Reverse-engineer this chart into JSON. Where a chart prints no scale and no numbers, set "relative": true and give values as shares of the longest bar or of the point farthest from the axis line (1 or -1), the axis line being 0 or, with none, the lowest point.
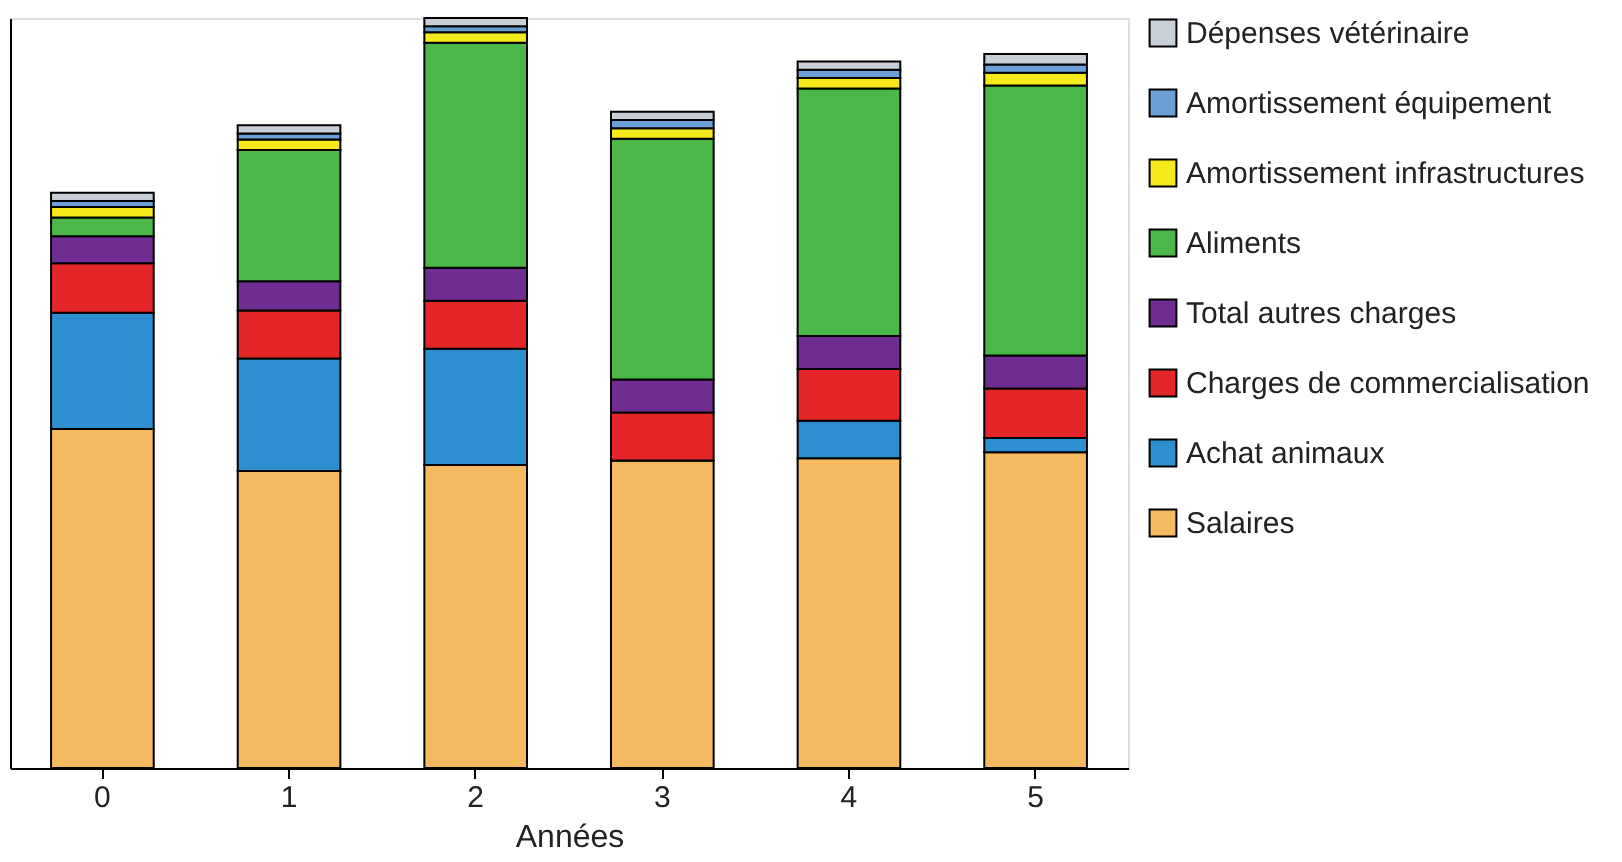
{
  "chart_data": {
    "type": "bar",
    "stacked": true,
    "relative": true,
    "xlabel": "Années",
    "legend": "right",
    "categories": [
      "0",
      "1",
      "2",
      "3",
      "4",
      "5"
    ],
    "series": [
      {
        "name": "Salaires",
        "color": "#f5b95f",
        "values": [
          0.452,
          0.396,
          0.404,
          0.41,
          0.413,
          0.421
        ]
      },
      {
        "name": "Achat animaux",
        "color": "#2e8fd0",
        "values": [
          0.155,
          0.15,
          0.155,
          0,
          0.05,
          0.019
        ]
      },
      {
        "name": "Charges de commercialisation",
        "color": "#e52629",
        "values": [
          0.066,
          0.064,
          0.064,
          0.064,
          0.069,
          0.066
        ]
      },
      {
        "name": "Total autres charges",
        "color": "#6f2c91",
        "values": [
          0.036,
          0.039,
          0.044,
          0.044,
          0.044,
          0.044
        ]
      },
      {
        "name": "Aliments",
        "color": "#4bb748",
        "values": [
          0.025,
          0.175,
          0.3,
          0.321,
          0.33,
          0.36
        ]
      },
      {
        "name": "Amortissement infrastructures",
        "color": "#f7ea1c",
        "values": [
          0.014,
          0.014,
          0.014,
          0.014,
          0.014,
          0.017
        ]
      },
      {
        "name": "Amortissement équipement",
        "color": "#6a9fd8",
        "values": [
          0.008,
          0.008,
          0.008,
          0.011,
          0.011,
          0.011
        ]
      },
      {
        "name": "Dépenses vétérinaire",
        "color": "#c9cfd6",
        "values": [
          0.011,
          0.011,
          0.011,
          0.011,
          0.011,
          0.014
        ]
      }
    ]
  }
}
